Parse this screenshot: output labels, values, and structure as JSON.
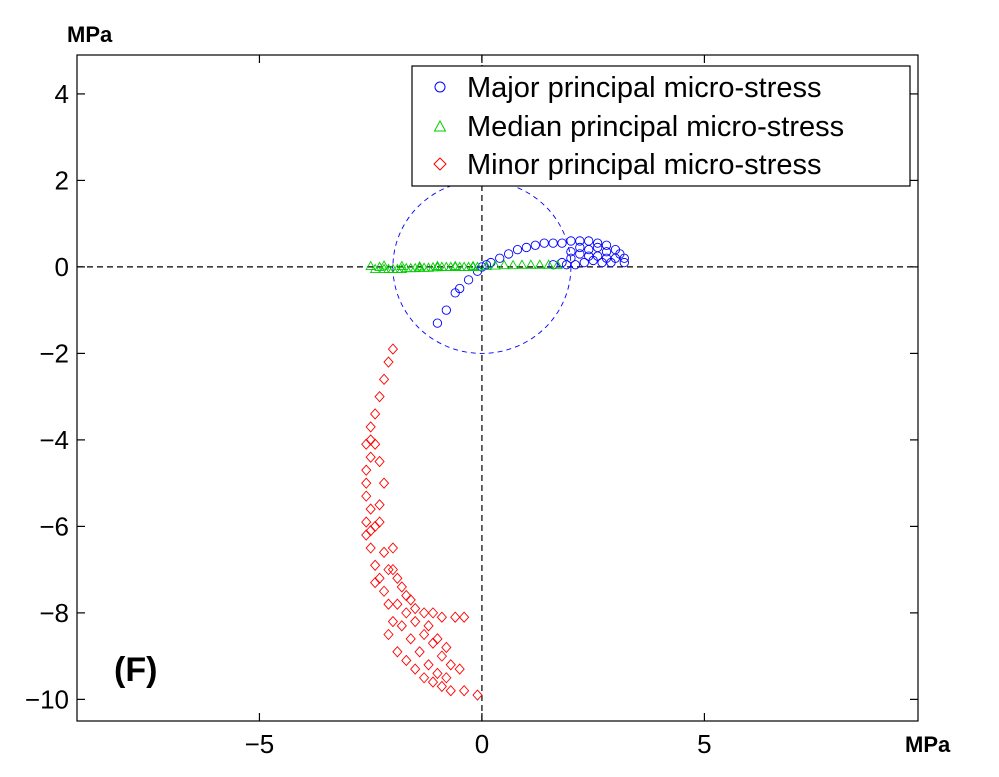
{
  "chart_data": {
    "type": "scatter",
    "xlabel": "MPa",
    "ylabel": "MPa",
    "xlim": [
      -9.1,
      9.8
    ],
    "ylim": [
      -10.5,
      4.9
    ],
    "xticks": [
      -5,
      0,
      5
    ],
    "xtick_labels": [
      "−5",
      "0",
      "5"
    ],
    "yticks": [
      4,
      2,
      0,
      -2,
      -4,
      -6,
      -8,
      -10
    ],
    "ytick_labels": [
      "4",
      "2",
      "0",
      "−2",
      "−4",
      "−6",
      "−8",
      "−10"
    ],
    "grid": false,
    "legend": "top-right",
    "annotations": [
      {
        "text": "(F)",
        "x": -8.7,
        "y": -9.8
      }
    ],
    "reference_lines": {
      "horizontal_y": 0,
      "vertical_x": 0,
      "style": "dashed",
      "color": "#000000"
    },
    "reference_circle": {
      "center": [
        0,
        0
      ],
      "radius": 2,
      "style": "dashed",
      "color": "#0000ff"
    },
    "series": [
      {
        "name": "Major principal micro-stress",
        "marker": "circle",
        "color": "#0000ff",
        "points": [
          [
            -1.0,
            -1.3
          ],
          [
            -0.8,
            -1.0
          ],
          [
            -0.6,
            -0.6
          ],
          [
            -0.5,
            -0.5
          ],
          [
            -0.3,
            -0.3
          ],
          [
            -0.1,
            -0.1
          ],
          [
            0.0,
            0.0
          ],
          [
            0.1,
            0.05
          ],
          [
            0.2,
            0.1
          ],
          [
            0.4,
            0.2
          ],
          [
            0.6,
            0.3
          ],
          [
            0.8,
            0.4
          ],
          [
            1.0,
            0.45
          ],
          [
            1.2,
            0.5
          ],
          [
            1.4,
            0.55
          ],
          [
            1.6,
            0.55
          ],
          [
            1.8,
            0.55
          ],
          [
            2.0,
            0.6
          ],
          [
            2.2,
            0.6
          ],
          [
            2.4,
            0.6
          ],
          [
            2.6,
            0.55
          ],
          [
            2.8,
            0.5
          ],
          [
            3.0,
            0.4
          ],
          [
            3.1,
            0.3
          ],
          [
            3.2,
            0.2
          ],
          [
            3.2,
            0.1
          ],
          [
            1.6,
            0.05
          ],
          [
            1.8,
            0.1
          ],
          [
            2.0,
            0.2
          ],
          [
            2.2,
            0.3
          ],
          [
            2.4,
            0.4
          ],
          [
            2.6,
            0.45
          ],
          [
            2.8,
            0.35
          ],
          [
            3.0,
            0.2
          ],
          [
            2.9,
            0.1
          ],
          [
            2.7,
            0.1
          ],
          [
            2.5,
            0.15
          ],
          [
            2.3,
            0.1
          ],
          [
            2.1,
            0.05
          ],
          [
            1.9,
            0.05
          ],
          [
            2.4,
            0.25
          ],
          [
            2.6,
            0.25
          ],
          [
            2.8,
            0.2
          ],
          [
            2.2,
            0.45
          ],
          [
            2.0,
            0.35
          ]
        ]
      },
      {
        "name": "Median principal micro-stress",
        "marker": "triangle",
        "color": "#00cc00",
        "points": [
          [
            -2.4,
            -0.05
          ],
          [
            -2.3,
            0.0
          ],
          [
            -2.2,
            -0.05
          ],
          [
            -2.1,
            -0.05
          ],
          [
            -2.0,
            -0.05
          ],
          [
            -1.9,
            -0.05
          ],
          [
            -1.8,
            -0.05
          ],
          [
            -1.7,
            -0.03
          ],
          [
            -1.6,
            -0.03
          ],
          [
            -1.5,
            -0.03
          ],
          [
            -1.4,
            -0.02
          ],
          [
            -1.3,
            -0.02
          ],
          [
            -1.2,
            -0.02
          ],
          [
            -1.1,
            -0.01
          ],
          [
            -1.0,
            -0.01
          ],
          [
            -0.9,
            0.0
          ],
          [
            -0.8,
            0.0
          ],
          [
            -0.7,
            0.0
          ],
          [
            -0.6,
            0.0
          ],
          [
            -0.5,
            0.0
          ],
          [
            -0.4,
            0.0
          ],
          [
            -0.3,
            0.0
          ],
          [
            -0.2,
            0.0
          ],
          [
            -0.1,
            0.0
          ],
          [
            0.1,
            0.02
          ],
          [
            0.3,
            0.03
          ],
          [
            0.5,
            0.04
          ],
          [
            0.7,
            0.04
          ],
          [
            0.9,
            0.05
          ],
          [
            1.1,
            0.05
          ],
          [
            1.3,
            0.05
          ],
          [
            1.5,
            0.05
          ],
          [
            1.7,
            0.04
          ],
          [
            -2.5,
            0.02
          ],
          [
            -2.2,
            0.03
          ],
          [
            -1.8,
            0.02
          ],
          [
            -1.4,
            0.01
          ],
          [
            -1.0,
            0.02
          ],
          [
            -0.6,
            0.02
          ],
          [
            -0.2,
            0.02
          ]
        ]
      },
      {
        "name": "Minor principal micro-stress",
        "marker": "diamond",
        "color": "#ff0000",
        "points": [
          [
            -2.0,
            -1.9
          ],
          [
            -2.1,
            -2.2
          ],
          [
            -2.2,
            -2.6
          ],
          [
            -2.3,
            -3.0
          ],
          [
            -2.4,
            -3.4
          ],
          [
            -2.5,
            -3.7
          ],
          [
            -2.5,
            -4.0
          ],
          [
            -2.4,
            -4.1
          ],
          [
            -2.6,
            -4.1
          ],
          [
            -2.5,
            -4.4
          ],
          [
            -2.6,
            -4.7
          ],
          [
            -2.6,
            -5.0
          ],
          [
            -2.6,
            -5.3
          ],
          [
            -2.5,
            -5.6
          ],
          [
            -2.6,
            -5.9
          ],
          [
            -2.5,
            -6.1
          ],
          [
            -2.6,
            -6.2
          ],
          [
            -2.4,
            -6.0
          ],
          [
            -2.3,
            -5.9
          ],
          [
            -2.2,
            -6.6
          ],
          [
            -2.5,
            -6.5
          ],
          [
            -2.4,
            -6.9
          ],
          [
            -2.3,
            -7.2
          ],
          [
            -2.2,
            -7.5
          ],
          [
            -2.1,
            -7.8
          ],
          [
            -2.4,
            -7.3
          ],
          [
            -2.1,
            -7.0
          ],
          [
            -1.9,
            -7.2
          ],
          [
            -1.7,
            -7.6
          ],
          [
            -1.5,
            -7.9
          ],
          [
            -1.3,
            -8.0
          ],
          [
            -1.1,
            -8.0
          ],
          [
            -0.9,
            -8.1
          ],
          [
            -1.8,
            -8.3
          ],
          [
            -1.6,
            -8.6
          ],
          [
            -1.4,
            -8.9
          ],
          [
            -1.2,
            -9.2
          ],
          [
            -1.0,
            -9.4
          ],
          [
            -0.8,
            -9.5
          ],
          [
            -2.0,
            -8.2
          ],
          [
            -2.1,
            -8.5
          ],
          [
            -1.9,
            -8.9
          ],
          [
            -1.7,
            -9.1
          ],
          [
            -1.5,
            -9.3
          ],
          [
            -1.3,
            -9.5
          ],
          [
            -1.1,
            -9.6
          ],
          [
            -0.9,
            -9.7
          ],
          [
            -0.7,
            -9.8
          ],
          [
            -0.4,
            -9.8
          ],
          [
            -0.1,
            -9.9
          ],
          [
            -1.5,
            -8.2
          ],
          [
            -1.3,
            -8.5
          ],
          [
            -1.1,
            -8.7
          ],
          [
            -0.9,
            -9.0
          ],
          [
            -0.7,
            -9.2
          ],
          [
            -0.5,
            -9.3
          ],
          [
            -1.7,
            -8.0
          ],
          [
            -1.9,
            -7.8
          ],
          [
            -2.0,
            -6.5
          ],
          [
            -2.3,
            -4.5
          ],
          [
            -0.6,
            -8.1
          ],
          [
            -0.4,
            -8.1
          ],
          [
            -2.2,
            -5.0
          ],
          [
            -2.3,
            -5.5
          ],
          [
            -1.2,
            -8.3
          ],
          [
            -1.0,
            -8.6
          ],
          [
            -0.8,
            -8.8
          ],
          [
            -1.8,
            -7.4
          ],
          [
            -1.6,
            -7.7
          ],
          [
            -2.0,
            -7.0
          ]
        ]
      }
    ]
  }
}
